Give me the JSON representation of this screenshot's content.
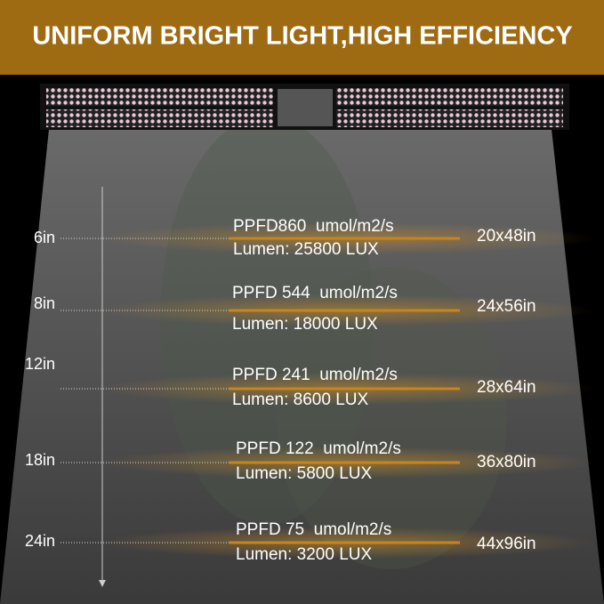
{
  "header": {
    "title": "UNIFORM BRIGHT LIGHT,HIGH EFFICIENCY"
  },
  "rows": [
    {
      "height": "6in",
      "ppfd": "PPFD860  umol/m2/s",
      "lumen": "Lumen: 25800 LUX",
      "coverage": "20x48in"
    },
    {
      "height": "8in",
      "ppfd": "PPFD 544  umol/m2/s",
      "lumen": "Lumen: 18000 LUX",
      "coverage": "24x56in"
    },
    {
      "height": "12in",
      "ppfd": "PPFD 241  umol/m2/s",
      "lumen": "Lumen: 8600 LUX",
      "coverage": "28x64in"
    },
    {
      "height": "18in",
      "ppfd": "PPFD 122  umol/m2/s",
      "lumen": "Lumen: 5800 LUX",
      "coverage": "36x80in"
    },
    {
      "height": "24in",
      "ppfd": "PPFD 75  umol/m2/s",
      "lumen": "Lumen: 3200 LUX",
      "coverage": "44x96in"
    }
  ]
}
